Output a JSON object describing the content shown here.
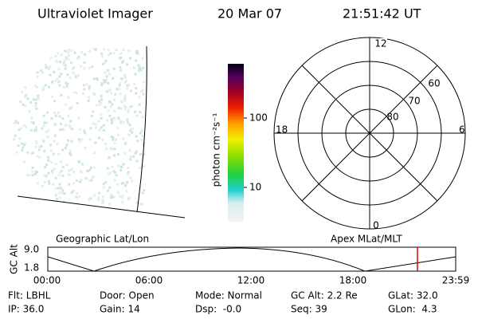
{
  "header": {
    "instrument": "Ultraviolet Imager",
    "date": "20 Mar 07",
    "time": "21:51:42 UT"
  },
  "colorbar": {
    "label": "photon cm⁻²s⁻¹",
    "ticks": [
      "100",
      "10"
    ]
  },
  "polar": {
    "mlt_labels": [
      "12",
      "18",
      "6",
      "0"
    ],
    "lat_labels": [
      "60",
      "70",
      "80"
    ]
  },
  "altitude": {
    "left_title": "Geographic Lat/Lon",
    "right_title": "Apex MLat/MLT",
    "axis_label": "GC Alt",
    "y_labels": [
      "9.0",
      "1.8"
    ],
    "time_labels": [
      "00:00",
      "06:00",
      "12:00",
      "18:00",
      "23:59"
    ]
  },
  "info": {
    "rows": [
      [
        "Flt: LBHL",
        "Door: Open",
        "Mode: Normal",
        "GC Alt: 2.2 Re",
        "GLat: 32.0"
      ],
      [
        "IP: 36.0",
        "Gain: 14",
        "Dsp:  -0.0",
        "Seq: 39",
        "GLon:  4.3"
      ]
    ]
  }
}
